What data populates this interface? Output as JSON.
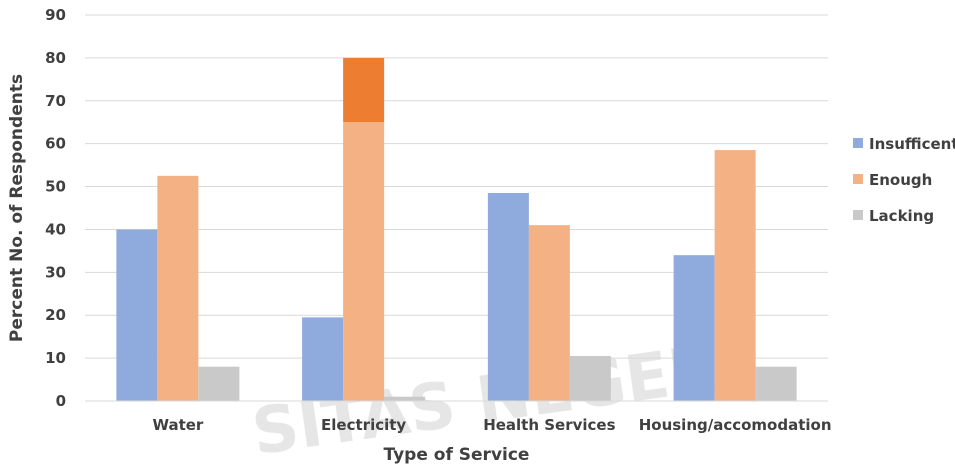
{
  "chart_data": {
    "type": "bar",
    "categories": [
      "Water",
      "Electricity",
      "Health Services",
      "Housing/accomodation"
    ],
    "series": [
      {
        "name": "Insufficent",
        "values": [
          40,
          19.5,
          48.5,
          34
        ],
        "color": "#8faadc"
      },
      {
        "name": "Enough",
        "values": [
          52.5,
          65,
          41,
          58.5
        ],
        "color": "#f4b183"
      },
      {
        "name": "Lacking",
        "values": [
          8,
          1,
          10.5,
          8
        ],
        "color": "#c9c9c9"
      }
    ],
    "highlight": {
      "category_index": 1,
      "series_index": 1,
      "from": 65,
      "to": 80,
      "color": "#ed7d31"
    },
    "xlabel": "Type of Service",
    "ylabel": "Percent No. of Respondents",
    "ylim": [
      0,
      90
    ],
    "yticks": [
      0,
      10,
      20,
      30,
      40,
      50,
      60,
      70,
      80,
      90
    ],
    "grid": true,
    "legend_position": "right",
    "watermark": "SITAS NEGERI"
  }
}
